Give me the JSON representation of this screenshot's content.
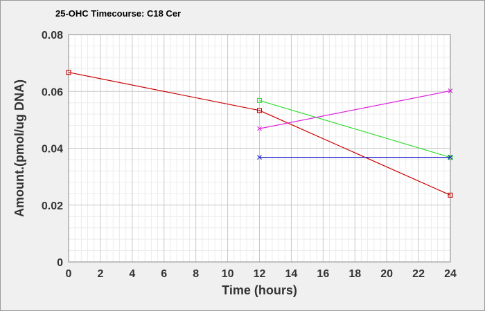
{
  "chart_data": {
    "type": "line",
    "title": "25-OHC Timecourse: C18 Cer",
    "xlabel": "Time (hours)",
    "ylabel": "Amount.(pmol/ug DNA)",
    "xlim": [
      0,
      24
    ],
    "ylim": [
      0,
      0.08
    ],
    "xticks": [
      0,
      2,
      4,
      6,
      8,
      10,
      12,
      14,
      16,
      18,
      20,
      22,
      24
    ],
    "yticks": [
      0,
      0.02,
      0.04,
      0.06,
      0.08
    ],
    "ytick_labels": [
      "0",
      "0.02",
      "0.04",
      "0.06",
      "0.08"
    ],
    "grid": true,
    "legend": "none",
    "series": [
      {
        "color": "#cc0000",
        "marker": "square",
        "x": [
          0,
          12,
          24
        ],
        "y": [
          0.0667,
          0.0533,
          0.0235
        ]
      },
      {
        "color": "#33dd33",
        "marker": "square",
        "x": [
          12,
          24
        ],
        "y": [
          0.0568,
          0.0368
        ]
      },
      {
        "color": "#dd22dd",
        "marker": "x",
        "x": [
          12,
          24
        ],
        "y": [
          0.0469,
          0.0602
        ]
      },
      {
        "color": "#1a1acc",
        "marker": "x",
        "x": [
          12,
          24
        ],
        "y": [
          0.0368,
          0.0368
        ]
      }
    ]
  }
}
